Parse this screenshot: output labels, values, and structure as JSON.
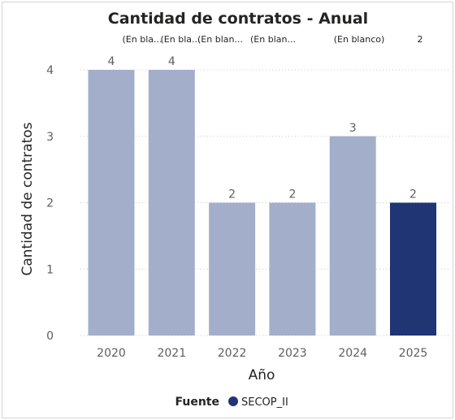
{
  "chart_data": {
    "type": "bar",
    "title": "Cantidad de contratos - Anual",
    "xlabel": "Año",
    "ylabel": "Cantidad de contratos",
    "categories": [
      "2020",
      "2021",
      "2022",
      "2023",
      "2024",
      "2025"
    ],
    "values": [
      4,
      4,
      2,
      2,
      3,
      2
    ],
    "yticks": [
      "0",
      "1",
      "2",
      "3",
      "4"
    ],
    "ylim": [
      0,
      4
    ],
    "grid": true,
    "highlighted_category": "2025",
    "top_labels": [
      "(En bla...",
      "(En bla...",
      "(En blan...",
      "(En blan...",
      "(En blanco)",
      "2"
    ],
    "colors": {
      "bar": "#a3aeca",
      "highlight": "#1f3574",
      "legend_dot": "#1f3574"
    },
    "legend": {
      "title": "Fuente",
      "items": [
        {
          "name": "SECOP_II",
          "color": "#1f3574"
        }
      ],
      "position": "bottom"
    }
  }
}
